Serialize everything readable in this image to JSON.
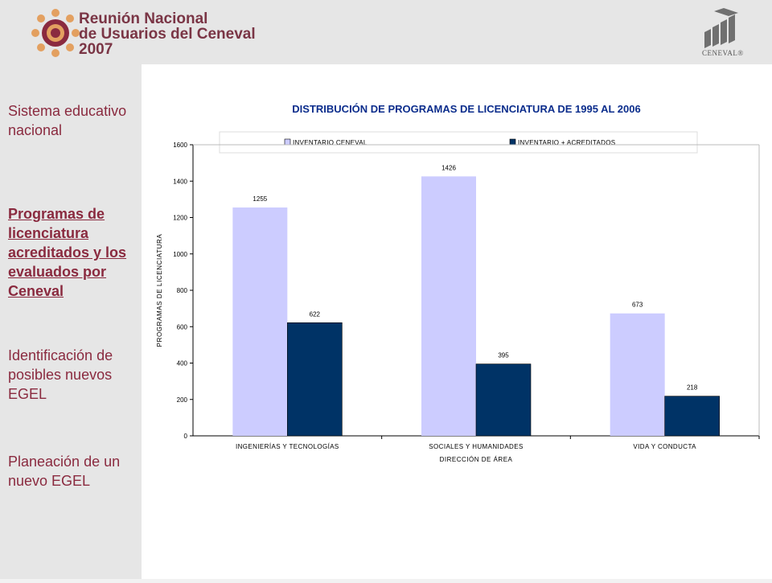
{
  "header": {
    "title_lines": [
      "Reunión Nacional",
      "de Usuarios del Ceneval",
      "2007"
    ],
    "brand": "CENEVAL®"
  },
  "sidebar": {
    "items": [
      {
        "label": "Sistema educativo nacional",
        "active": false
      },
      {
        "label": "Programas de licenciatura acreditados y los evaluados por Ceneval",
        "active": true
      },
      {
        "label": "Identificación de posibles nuevos EGEL",
        "active": false
      },
      {
        "label": "Planeación de un nuevo EGEL",
        "active": false
      }
    ]
  },
  "colors": {
    "series1": "#ccccff",
    "series2": "#003366",
    "accent": "#8a2a3f",
    "title_blue": "#0b2d8c"
  },
  "chart_data": {
    "type": "bar",
    "title": "DISTRIBUCIÓN DE PROGRAMAS DE LICENCIATURA DE 1995 AL 2006",
    "xlabel": "DIRECCIÓN DE ÁREA",
    "ylabel": "PROGRAMAS DE LICENCIATURA",
    "ylim": [
      0,
      1600
    ],
    "yticks": [
      0,
      200,
      400,
      600,
      800,
      1000,
      1200,
      1400,
      1600
    ],
    "categories": [
      "INGENIERÍAS Y TECNOLOGÍAS",
      "SOCIALES Y HUMANIDADES",
      "VIDA Y CONDUCTA"
    ],
    "series": [
      {
        "name": "INVENTARIO CENEVAL",
        "values": [
          1255,
          1426,
          673
        ]
      },
      {
        "name": "INVENTARIO + ACREDITADOS",
        "values": [
          622,
          395,
          218
        ]
      }
    ],
    "legend": "top",
    "grid": false
  }
}
